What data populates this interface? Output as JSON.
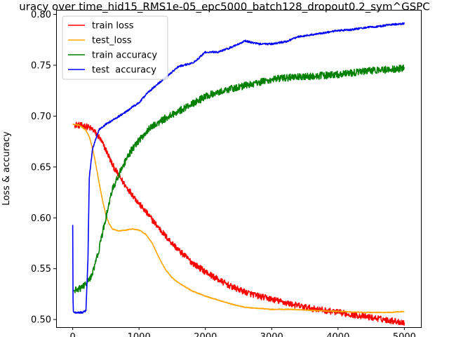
{
  "chart_data": {
    "type": "line",
    "title": "uracy over time_hid15_RMS1e-05_epc5000_batch128_dropout0.2_sym^GSPC",
    "xlabel": "",
    "ylabel": "Loss & accuracy",
    "xlim": [
      -250,
      5250
    ],
    "ylim": [
      0.4925,
      0.8045
    ],
    "xticks": [
      0,
      1000,
      2000,
      3000,
      4000,
      5000
    ],
    "yticks": [
      0.5,
      0.55,
      0.6,
      0.65,
      0.7,
      0.75,
      0.8
    ],
    "ytick_labels": [
      "0.50",
      "0.55",
      "0.60",
      "0.65",
      "0.70",
      "0.75",
      "0.80"
    ],
    "grid": false,
    "legend_position": "top-left",
    "series": [
      {
        "name": "train loss",
        "color": "#ff0000",
        "noise": 0.003,
        "x": [
          0,
          100,
          200,
          300,
          400,
          500,
          600,
          700,
          800,
          900,
          1000,
          1200,
          1400,
          1600,
          1800,
          2000,
          2200,
          2400,
          2600,
          2800,
          3000,
          3300,
          3600,
          3900,
          4200,
          4500,
          4800,
          5000
        ],
        "y": [
          0.692,
          0.691,
          0.69,
          0.687,
          0.679,
          0.667,
          0.652,
          0.641,
          0.631,
          0.623,
          0.614,
          0.598,
          0.582,
          0.568,
          0.556,
          0.547,
          0.539,
          0.532,
          0.527,
          0.523,
          0.52,
          0.515,
          0.511,
          0.508,
          0.505,
          0.502,
          0.499,
          0.497
        ]
      },
      {
        "name": "test_loss",
        "color": "#ffa500",
        "noise": 0.0004,
        "x": [
          0,
          100,
          200,
          250,
          300,
          350,
          400,
          450,
          500,
          550,
          600,
          700,
          800,
          900,
          1000,
          1100,
          1200,
          1300,
          1400,
          1500,
          1600,
          1800,
          2000,
          2200,
          2400,
          2600,
          2800,
          3000,
          3300,
          3600,
          4000,
          4400,
          4800,
          5000
        ],
        "y": [
          0.692,
          0.691,
          0.686,
          0.68,
          0.668,
          0.652,
          0.634,
          0.617,
          0.603,
          0.594,
          0.589,
          0.587,
          0.588,
          0.589,
          0.588,
          0.584,
          0.575,
          0.561,
          0.549,
          0.541,
          0.536,
          0.528,
          0.523,
          0.519,
          0.515,
          0.512,
          0.511,
          0.51,
          0.51,
          0.509,
          0.508,
          0.507,
          0.507,
          0.508
        ]
      },
      {
        "name": "train accuracy",
        "color": "#008000",
        "noise": 0.0035,
        "x": [
          0,
          100,
          200,
          300,
          400,
          500,
          600,
          700,
          800,
          900,
          1000,
          1100,
          1200,
          1400,
          1600,
          1800,
          2000,
          2200,
          2400,
          2600,
          2800,
          3000,
          3300,
          3600,
          4000,
          4400,
          4800,
          5000
        ],
        "y": [
          0.528,
          0.53,
          0.535,
          0.545,
          0.57,
          0.6,
          0.628,
          0.643,
          0.656,
          0.668,
          0.676,
          0.684,
          0.69,
          0.698,
          0.705,
          0.712,
          0.719,
          0.724,
          0.727,
          0.73,
          0.733,
          0.736,
          0.738,
          0.739,
          0.741,
          0.744,
          0.746,
          0.747
        ]
      },
      {
        "name": "test  accuracy",
        "color": "#0000ff",
        "noise": 0.0009,
        "x": [
          0,
          5,
          10,
          20,
          150,
          200,
          230,
          250,
          300,
          350,
          400,
          500,
          600,
          700,
          800,
          900,
          1000,
          1100,
          1200,
          1400,
          1600,
          1800,
          1900,
          2000,
          2200,
          2400,
          2600,
          2800,
          3000,
          3200,
          3400,
          3600,
          3800,
          4000,
          4200,
          4400,
          4600,
          4800,
          5000
        ],
        "y": [
          0.593,
          0.52,
          0.508,
          0.507,
          0.507,
          0.509,
          0.56,
          0.64,
          0.668,
          0.678,
          0.687,
          0.692,
          0.696,
          0.7,
          0.704,
          0.709,
          0.713,
          0.721,
          0.727,
          0.738,
          0.749,
          0.752,
          0.757,
          0.763,
          0.763,
          0.768,
          0.774,
          0.771,
          0.771,
          0.773,
          0.778,
          0.78,
          0.782,
          0.784,
          0.785,
          0.787,
          0.788,
          0.79,
          0.791
        ]
      }
    ]
  }
}
